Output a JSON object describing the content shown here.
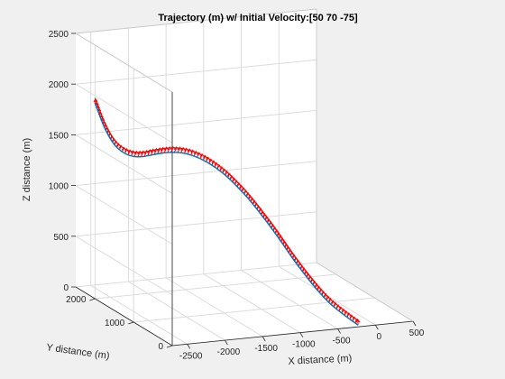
{
  "chart_data": {
    "type": "line",
    "title": "Trajectory (m) w/ Initial Velocity:[50  70 -75]",
    "xlabel": "X distance (m)",
    "ylabel": "Y distance (m)",
    "zlabel": "Z distance (m)",
    "xlim": [
      -2700,
      500
    ],
    "ylim": [
      0,
      2500
    ],
    "zlim": [
      0,
      2500
    ],
    "xticks": [
      -2500,
      -2000,
      -1500,
      -1000,
      -500,
      0,
      500
    ],
    "yticks": [
      0,
      1000,
      2000
    ],
    "zticks": [
      0,
      500,
      1000,
      1500,
      2000,
      2500
    ],
    "grid": true,
    "series": [
      {
        "kind": "trajectory",
        "color": "#0072bd",
        "x": [
          -2600,
          -2500,
          -2400,
          -2300,
          -2200,
          -2100,
          -2000,
          -1900,
          -1800,
          -1700,
          -1600,
          -1500,
          -1400,
          -1300,
          -1200,
          -1100,
          -1000,
          -900,
          -800,
          -700,
          -600,
          -500,
          -400,
          -300,
          -250,
          -200
        ],
        "y": [
          2200,
          2150,
          2100,
          2040,
          1980,
          1920,
          1860,
          1790,
          1720,
          1650,
          1580,
          1500,
          1420,
          1340,
          1260,
          1180,
          1090,
          990,
          890,
          780,
          660,
          530,
          390,
          240,
          150,
          60
        ],
        "z": [
          1880,
          1640,
          1480,
          1400,
          1370,
          1375,
          1400,
          1425,
          1440,
          1440,
          1420,
          1385,
          1330,
          1260,
          1170,
          1070,
          950,
          820,
          680,
          530,
          390,
          260,
          150,
          70,
          35,
          0
        ]
      },
      {
        "kind": "velocity-quiver",
        "color": "#ff0000",
        "offset_z": 45
      }
    ]
  }
}
